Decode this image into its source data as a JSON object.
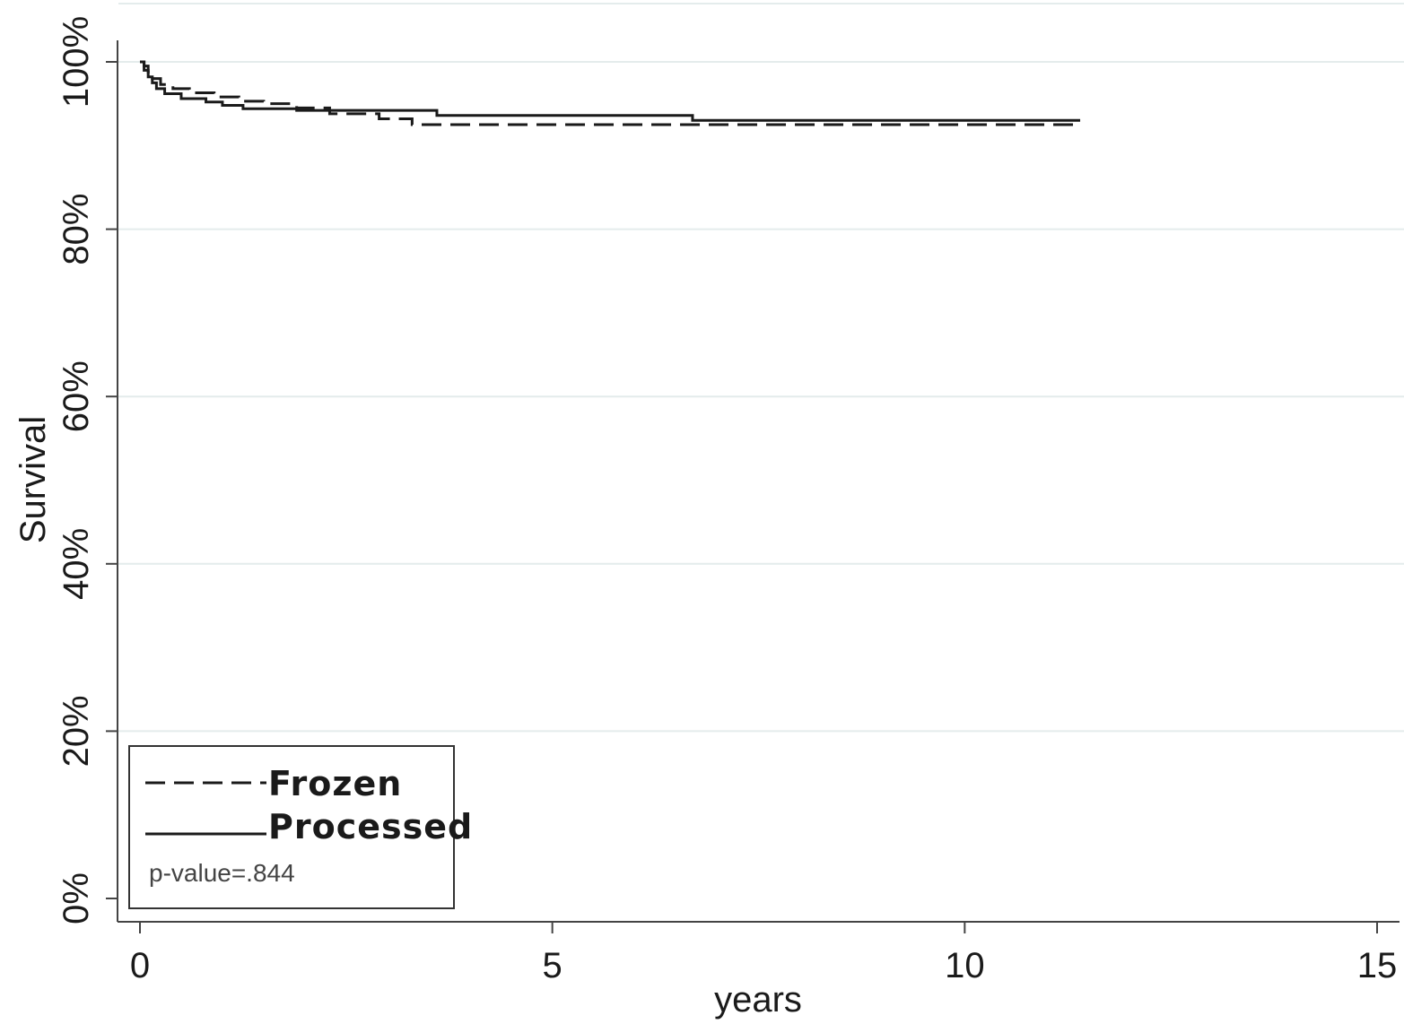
{
  "chart_data": {
    "type": "line",
    "xlabel": "years",
    "ylabel": "Survival",
    "xlim": [
      0,
      15
    ],
    "ylim": [
      0,
      1
    ],
    "x_ticks": [
      0,
      5,
      10,
      15
    ],
    "x_tick_labels": [
      "0",
      "5",
      "10",
      "15"
    ],
    "y_ticks": [
      0,
      0.2,
      0.4,
      0.6,
      0.8,
      1.0
    ],
    "y_tick_labels": [
      "0%",
      "20%",
      "40%",
      "60%",
      "80%",
      "100%"
    ],
    "grid": "horizontal",
    "legend_position": "bottom-left",
    "series": [
      {
        "name": "Frozen",
        "style": "dashed",
        "color": "#1a1a1a",
        "x": [
          0,
          0.05,
          0.1,
          0.15,
          0.25,
          0.4,
          0.6,
          0.9,
          1.2,
          1.5,
          1.9,
          2.3,
          2.9,
          3.3,
          6.7,
          11.4
        ],
        "y": [
          1.0,
          0.995,
          0.988,
          0.98,
          0.973,
          0.968,
          0.963,
          0.958,
          0.953,
          0.95,
          0.945,
          0.938,
          0.932,
          0.925,
          0.925,
          0.925
        ]
      },
      {
        "name": "Processed",
        "style": "solid",
        "color": "#1a1a1a",
        "x": [
          0,
          0.05,
          0.1,
          0.15,
          0.2,
          0.3,
          0.5,
          0.8,
          1.0,
          1.25,
          1.9,
          3.6,
          6.7,
          11.4
        ],
        "y": [
          1.0,
          0.99,
          0.982,
          0.975,
          0.968,
          0.962,
          0.956,
          0.952,
          0.948,
          0.944,
          0.942,
          0.936,
          0.93,
          0.93
        ]
      }
    ],
    "annotation": "p-value=.844"
  }
}
